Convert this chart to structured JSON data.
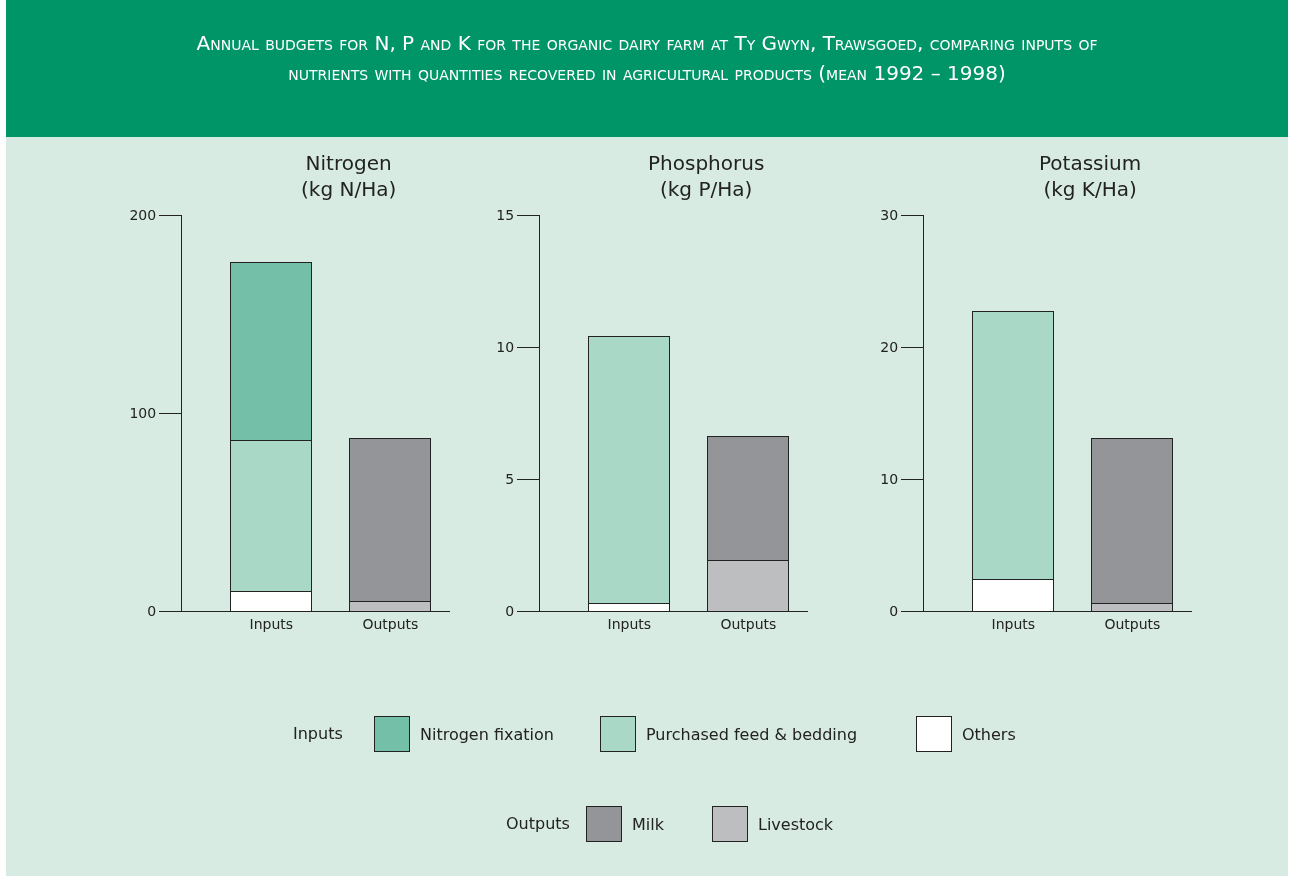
{
  "chart_data": [
    {
      "type": "bar",
      "stacked": true,
      "title": "Annual budgets for N, P and K for the organic dairy farm at Ty Gwyn, Trawsgoed, comparing inputs of nutrients with quantities recovered in agricultural products (mean 1992 – 1998)",
      "ylabel": "Nitrogen\n(kg N/Ha)",
      "categories": [
        "Inputs",
        "Outputs"
      ],
      "ylim": [
        0,
        200
      ],
      "yticks": [
        0,
        100,
        200
      ],
      "grid": false,
      "legend": "bottom",
      "annotations": [
        "Inputs",
        "Outputs"
      ],
      "series": [
        {
          "name": "Others",
          "color": "#ffffff",
          "values": [
            10,
            null
          ]
        },
        {
          "name": "Purchased feed & bedding",
          "color": "#a9d8c6",
          "values": [
            76,
            null
          ]
        },
        {
          "name": "Nitrogen fixation",
          "color": "#74bfa8",
          "values": [
            90,
            null
          ]
        },
        {
          "name": "Livestock",
          "color": "#bcbec0",
          "values": [
            null,
            5
          ]
        },
        {
          "name": "Milk",
          "color": "#939598",
          "values": [
            null,
            82
          ]
        }
      ]
    },
    {
      "type": "bar",
      "stacked": true,
      "ylabel": "Phosphorus\n(kg P/Ha)",
      "categories": [
        "Inputs",
        "Outputs"
      ],
      "ylim": [
        0,
        15
      ],
      "yticks": [
        0,
        5,
        10,
        15
      ],
      "grid": false,
      "series": [
        {
          "color": "#ffffff",
          "values": [
            0.3,
            null
          ]
        },
        {
          "color": "#a9d8c6",
          "values": [
            10.1,
            null
          ]
        },
        {
          "color": "#bcbec0",
          "values": [
            null,
            1.9
          ]
        },
        {
          "color": "#939598",
          "values": [
            null,
            4.7
          ]
        }
      ]
    },
    {
      "type": "bar",
      "stacked": true,
      "ylabel": "Potassium\n(kg K/Ha)",
      "categories": [
        "Inputs",
        "Outputs"
      ],
      "ylim": [
        0,
        30
      ],
      "yticks": [
        0,
        10,
        20,
        30
      ],
      "grid": false,
      "series": [
        {
          "color": "#ffffff",
          "values": [
            2.4,
            null
          ]
        },
        {
          "color": "#a9d8c6",
          "values": [
            20.3,
            null
          ]
        },
        {
          "color": "#bcbec0",
          "values": [
            null,
            0.6
          ]
        },
        {
          "color": "#939598",
          "values": [
            null,
            12.5
          ]
        }
      ]
    }
  ]
}
